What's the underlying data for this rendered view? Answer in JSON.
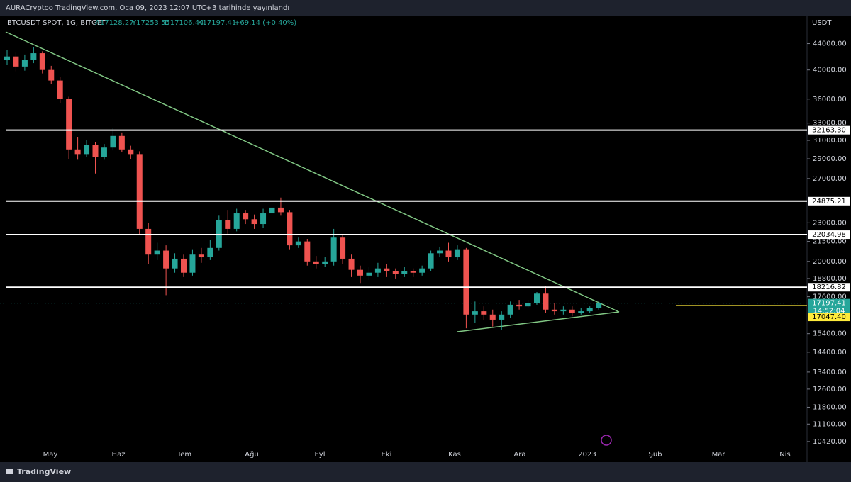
{
  "header": {
    "publisher": "AURACryptoo TradingView.com, Oca 09, 2023 12:07 UTC+3 tarihinde yayınlandı"
  },
  "legend": {
    "symbol": "BTCUSDT SPOT, 1G, BITGET",
    "open": "A17128.27",
    "high": "Y17253.55",
    "low": "D17106.44",
    "close": "K17197.41",
    "change": "+69.14 (+0.40%)"
  },
  "footer": {
    "brand": "TradingView"
  },
  "chart_data": {
    "type": "candlestick",
    "y_unit": "USDT",
    "log_scale": true,
    "categories": [
      "May",
      "Haz",
      "Tem",
      "Ağu",
      "Eyl",
      "Eki",
      "Kas",
      "Ara",
      "2023",
      "Şub",
      "Mar",
      "Nis"
    ],
    "ylim": [
      10180,
      48700
    ],
    "yticks": [
      {
        "value": 44000,
        "label": "44000.00"
      },
      {
        "value": 40000,
        "label": "40000.00"
      },
      {
        "value": 36000,
        "label": "36000.00"
      },
      {
        "value": 33000,
        "label": "33000.00"
      },
      {
        "value": 31000,
        "label": "31000.00"
      },
      {
        "value": 29000,
        "label": "29000.00"
      },
      {
        "value": 27000,
        "label": "27000.00"
      },
      {
        "value": 23000,
        "label": "23000.00"
      },
      {
        "value": 21500,
        "label": "21500.00"
      },
      {
        "value": 20000,
        "label": "20000.00"
      },
      {
        "value": 18800,
        "label": "18800.00"
      },
      {
        "value": 17600,
        "label": "17600.00"
      },
      {
        "value": 15400,
        "label": "15400.00"
      },
      {
        "value": 14400,
        "label": "14400.00"
      },
      {
        "value": 13400,
        "label": "13400.00"
      },
      {
        "value": 12600,
        "label": "12600.00"
      },
      {
        "value": 11800,
        "label": "11800.00"
      },
      {
        "value": 11100,
        "label": "11100.00"
      },
      {
        "value": 10420,
        "label": "10420.00"
      }
    ],
    "up_color": "#26a69a",
    "down_color": "#ef5350",
    "open": [
      41500,
      42000,
      40500,
      41500,
      42500,
      40000,
      38500,
      36000,
      30000,
      29500,
      30500,
      29200,
      30200,
      31500,
      30000,
      29500,
      22500,
      20500,
      20800,
      19500,
      20200,
      19200,
      20500,
      20300,
      21000,
      23200,
      22500,
      23800,
      23300,
      22900,
      23800,
      24300,
      23900,
      21200,
      21500,
      20000,
      19800,
      20000,
      21800,
      20200,
      19400,
      19000,
      19200,
      19500,
      19300,
      19100,
      19300,
      19200,
      19500,
      20600,
      20800,
      20300,
      20900,
      16500,
      16700,
      16500,
      16200,
      16500,
      17100,
      17000,
      17200,
      17800,
      16800,
      16700,
      16800,
      16600,
      16700,
      16900
    ],
    "high": [
      43000,
      42600,
      42300,
      43500,
      42800,
      40600,
      39000,
      36300,
      31400,
      31000,
      30800,
      30600,
      32400,
      31900,
      30400,
      29800,
      23000,
      21400,
      21200,
      20600,
      20500,
      20900,
      21000,
      21600,
      23600,
      24100,
      24200,
      24100,
      23700,
      24200,
      24800,
      25200,
      24100,
      21800,
      21700,
      20400,
      20300,
      22500,
      22000,
      20500,
      19700,
      19600,
      19900,
      19800,
      19500,
      19600,
      19500,
      19700,
      20800,
      21100,
      21400,
      21200,
      21000,
      17300,
      17000,
      16800,
      16700,
      17300,
      17400,
      17400,
      17900,
      18300,
      17200,
      17000,
      17000,
      16900,
      17000,
      17300
    ],
    "low": [
      40800,
      39800,
      39900,
      41000,
      39500,
      38000,
      35500,
      29000,
      28900,
      29200,
      27500,
      28900,
      29900,
      29700,
      29000,
      22000,
      19800,
      20100,
      17700,
      19200,
      18900,
      19000,
      19900,
      20100,
      20800,
      22100,
      22300,
      22900,
      22500,
      22600,
      23500,
      23600,
      20900,
      21000,
      19700,
      19500,
      19600,
      19700,
      19800,
      18900,
      18500,
      18700,
      18900,
      18900,
      18800,
      18900,
      18900,
      19000,
      19300,
      20300,
      20000,
      20100,
      15700,
      16000,
      16200,
      15800,
      15600,
      16300,
      16800,
      16900,
      17100,
      16600,
      16500,
      16500,
      16400,
      16500,
      16600,
      16800
    ],
    "close": [
      42000,
      40500,
      41500,
      42500,
      40000,
      38500,
      36000,
      30000,
      29500,
      30500,
      29200,
      30200,
      31500,
      30000,
      29500,
      22500,
      20500,
      20800,
      19500,
      20200,
      19200,
      20500,
      20300,
      21000,
      23200,
      22500,
      23800,
      23300,
      22900,
      23800,
      24300,
      23900,
      21200,
      21500,
      20000,
      19800,
      20000,
      21800,
      20200,
      19400,
      19000,
      19200,
      19500,
      19300,
      19100,
      19300,
      19200,
      19500,
      20600,
      20800,
      20300,
      20900,
      16500,
      16700,
      16500,
      16200,
      16500,
      17100,
      17000,
      17200,
      17800,
      16800,
      16700,
      16800,
      16600,
      16700,
      16900,
      17197.41
    ],
    "levels": [
      {
        "value": 32163.3,
        "label": "32163.30"
      },
      {
        "value": 24875.21,
        "label": "24875.21"
      },
      {
        "value": 22034.98,
        "label": "22034.98"
      },
      {
        "value": 18216.82,
        "label": "18216.82"
      }
    ],
    "alert": {
      "value": 17047.4,
      "label": "17047.40",
      "color": "#ffeb3b"
    },
    "last_price": {
      "value": 17197.41,
      "label": "17197.41",
      "countdown": "14:52:04",
      "color": "#26a69a"
    }
  }
}
